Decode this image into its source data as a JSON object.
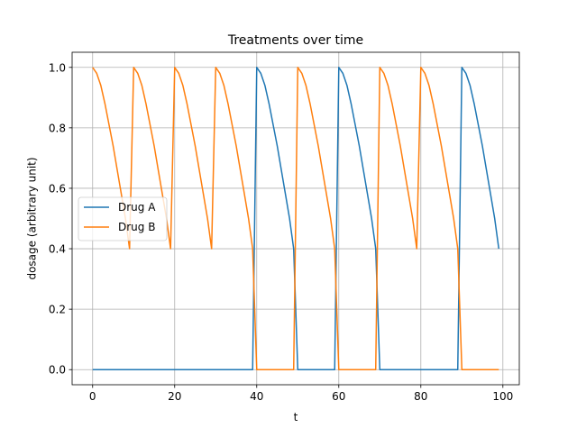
{
  "chart_data": {
    "type": "line",
    "title": "Treatments over time",
    "xlabel": "t",
    "ylabel": "dosage (arbitrary unit)",
    "xlim": [
      -5,
      104
    ],
    "ylim": [
      -0.05,
      1.05
    ],
    "xticks": [
      0,
      20,
      40,
      60,
      80,
      100
    ],
    "yticks": [
      0.0,
      0.2,
      0.4,
      0.6,
      0.8,
      1.0
    ],
    "xtick_labels": [
      "0",
      "20",
      "40",
      "60",
      "80",
      "100"
    ],
    "ytick_labels": [
      "0.0",
      "0.2",
      "0.4",
      "0.6",
      "0.8",
      "1.0"
    ],
    "grid": true,
    "legend_position": "center-left",
    "series": [
      {
        "name": "Drug A",
        "color": "#1f77b4",
        "x": [
          0,
          39,
          40,
          41,
          42,
          43,
          44,
          45,
          46,
          47,
          48,
          49,
          50,
          59,
          60,
          61,
          62,
          63,
          64,
          65,
          66,
          67,
          68,
          69,
          70,
          89,
          90,
          91,
          92,
          93,
          94,
          95,
          96,
          97,
          98,
          99
        ],
        "values": [
          0,
          0,
          1.0,
          0.98,
          0.94,
          0.88,
          0.81,
          0.74,
          0.66,
          0.58,
          0.5,
          0.4,
          0,
          0,
          1.0,
          0.98,
          0.94,
          0.88,
          0.81,
          0.74,
          0.66,
          0.58,
          0.5,
          0.4,
          0,
          0,
          1.0,
          0.98,
          0.94,
          0.88,
          0.81,
          0.74,
          0.66,
          0.58,
          0.5,
          0.4
        ]
      },
      {
        "name": "Drug B",
        "color": "#ff7f0e",
        "x": [
          0,
          1,
          2,
          3,
          4,
          5,
          6,
          7,
          8,
          9,
          10,
          11,
          12,
          13,
          14,
          15,
          16,
          17,
          18,
          19,
          20,
          21,
          22,
          23,
          24,
          25,
          26,
          27,
          28,
          29,
          30,
          31,
          32,
          33,
          34,
          35,
          36,
          37,
          38,
          39,
          40,
          49,
          50,
          51,
          52,
          53,
          54,
          55,
          56,
          57,
          58,
          59,
          60,
          69,
          70,
          71,
          72,
          73,
          74,
          75,
          76,
          77,
          78,
          79,
          80,
          81,
          82,
          83,
          84,
          85,
          86,
          87,
          88,
          89,
          90,
          99
        ],
        "values": [
          1.0,
          0.98,
          0.94,
          0.88,
          0.81,
          0.74,
          0.66,
          0.58,
          0.5,
          0.4,
          1.0,
          0.98,
          0.94,
          0.88,
          0.81,
          0.74,
          0.66,
          0.58,
          0.5,
          0.4,
          1.0,
          0.98,
          0.94,
          0.88,
          0.81,
          0.74,
          0.66,
          0.58,
          0.5,
          0.4,
          1.0,
          0.98,
          0.94,
          0.88,
          0.81,
          0.74,
          0.66,
          0.58,
          0.5,
          0.4,
          0,
          0,
          1.0,
          0.98,
          0.94,
          0.88,
          0.81,
          0.74,
          0.66,
          0.58,
          0.5,
          0.4,
          0,
          0,
          1.0,
          0.98,
          0.94,
          0.88,
          0.81,
          0.74,
          0.66,
          0.58,
          0.5,
          0.4,
          1.0,
          0.98,
          0.94,
          0.88,
          0.81,
          0.74,
          0.66,
          0.58,
          0.5,
          0.4,
          0,
          0
        ]
      }
    ]
  }
}
